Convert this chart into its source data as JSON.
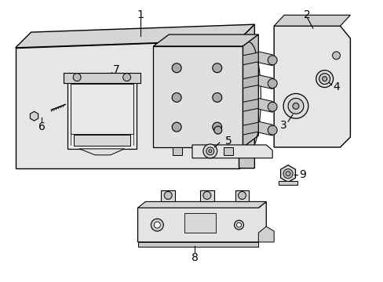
{
  "background_color": "#ffffff",
  "line_color": "#000000",
  "panel_fill": "#e8e8e8",
  "panel_edge": "#888888",
  "hcu_fill": "#e0e0e0",
  "hcu_dark": "#c0c0c0",
  "ecu_fill": "#f0f0f0",
  "bracket_fill": "#e4e4e4",
  "figsize": [
    4.89,
    3.6
  ],
  "dpi": 100
}
